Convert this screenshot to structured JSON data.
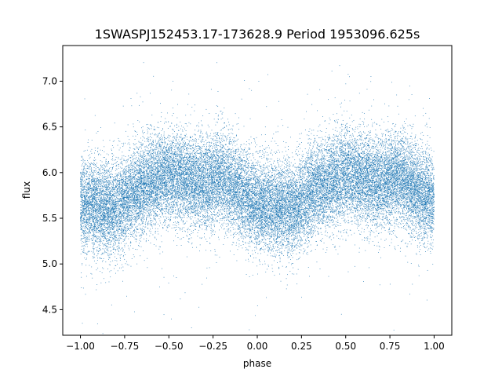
{
  "chart_data": {
    "type": "scatter",
    "title": "1SWASPJ152453.17-173628.9 Period 1953096.625s",
    "xlabel": "phase",
    "ylabel": "flux",
    "xlim": [
      -1.1,
      1.1
    ],
    "ylim": [
      4.22,
      7.39
    ],
    "xticks": [
      -1.0,
      -0.75,
      -0.5,
      -0.25,
      0.0,
      0.25,
      0.5,
      0.75,
      1.0
    ],
    "xtick_labels": [
      "−1.00",
      "−0.75",
      "−0.50",
      "−0.25",
      "0.00",
      "0.25",
      "0.50",
      "0.75",
      "1.00"
    ],
    "yticks": [
      4.5,
      5.0,
      5.5,
      6.0,
      6.5,
      7.0
    ],
    "ytick_labels": [
      "4.5",
      "5.0",
      "5.5",
      "6.0",
      "6.5",
      "7.0"
    ],
    "grid": false,
    "legend": "none",
    "marker_color": "#1f77b4",
    "x_range": [
      -1.0,
      1.0
    ],
    "approx_point_count": 30000,
    "light_curve_profile": {
      "x": [
        -1.0,
        -0.9,
        -0.8,
        -0.7,
        -0.6,
        -0.5,
        -0.4,
        -0.3,
        -0.2,
        -0.1,
        0.0,
        0.1,
        0.2,
        0.3,
        0.4,
        0.5,
        0.6,
        0.7,
        0.8,
        0.9,
        1.0
      ],
      "median_flux": [
        5.68,
        5.62,
        5.6,
        5.78,
        5.9,
        5.97,
        5.93,
        5.88,
        5.96,
        5.8,
        5.65,
        5.62,
        5.6,
        5.78,
        5.9,
        5.97,
        5.93,
        5.88,
        5.96,
        5.8,
        5.68
      ],
      "scatter_sigma": 0.25
    }
  }
}
